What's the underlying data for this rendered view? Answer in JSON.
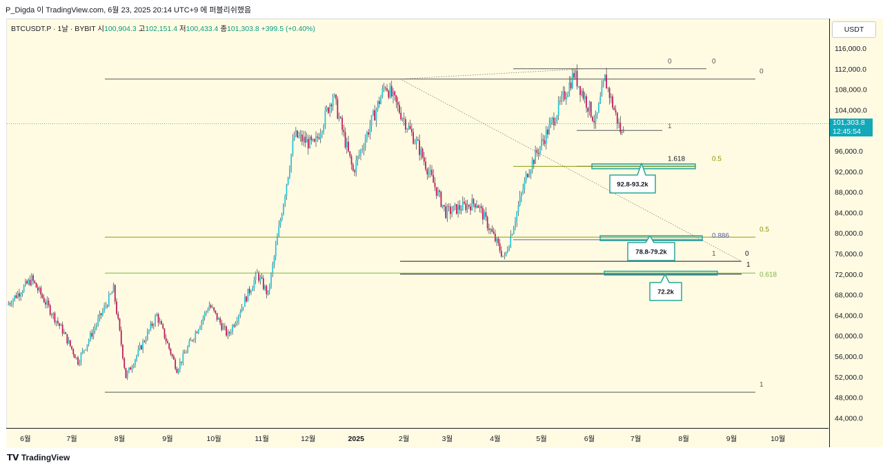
{
  "header": {
    "publish_line": "P_Digda 이 TradingView.com, 6월 23, 2025 20:14 UTC+9 에 퍼블리쉬했음"
  },
  "symbol_bar": {
    "symbol": "BTCUSDT.P · 1날 · BYBIT",
    "open_label": "시",
    "open_value": "100,904.3",
    "high_label": "고",
    "high_value": "102,151.4",
    "low_label": "저",
    "low_value": "100,433.4",
    "close_label": "종",
    "close_value": "101,303.8",
    "change": "+399.5 (+0.40%)"
  },
  "currency_button": "USDT",
  "last_price": {
    "value": "101,303.8",
    "countdown": "12:45:54"
  },
  "brand": "TradingView",
  "colors": {
    "up": "#26a69a",
    "down": "#ef5350",
    "teal_candle": "#26c6da",
    "red_candle": "#c2185b",
    "background": "#fffbe3",
    "fib_green": "#7cb342",
    "zone_green": "#26a69a"
  },
  "chart_data": {
    "type": "candlestick",
    "title": "",
    "price_range": [
      42000,
      118000
    ],
    "y_ticks": [
      "116,000.0",
      "112,000.0",
      "108,000.0",
      "104,000.0",
      "100,000.0",
      "96,000.0",
      "92,000.0",
      "88,000.0",
      "84,000.0",
      "80,000.0",
      "76,000.0",
      "72,000.0",
      "68,000.0",
      "64,000.0",
      "60,000.0",
      "56,000.0",
      "52,000.0",
      "48,000.0",
      "44,000.0"
    ],
    "x_ticks": [
      "6월",
      "7월",
      "8월",
      "9월",
      "10월",
      "11월",
      "12월",
      "2025",
      "2월",
      "3월",
      "4월",
      "5월",
      "6월",
      "7월",
      "8월",
      "9월",
      "10월"
    ],
    "price_path": [
      {
        "date": "2024-05-20",
        "close": 66000
      },
      {
        "date": "2024-06-05",
        "close": 71000
      },
      {
        "date": "2024-06-25",
        "close": 61000
      },
      {
        "date": "2024-07-05",
        "close": 55000
      },
      {
        "date": "2024-07-28",
        "close": 69000
      },
      {
        "date": "2024-08-05",
        "close": 52000
      },
      {
        "date": "2024-08-25",
        "close": 64000
      },
      {
        "date": "2024-09-07",
        "close": 53500
      },
      {
        "date": "2024-09-28",
        "close": 66000
      },
      {
        "date": "2024-10-10",
        "close": 60000
      },
      {
        "date": "2024-10-29",
        "close": 72000
      },
      {
        "date": "2024-11-05",
        "close": 68000
      },
      {
        "date": "2024-11-22",
        "close": 99000
      },
      {
        "date": "2024-12-05",
        "close": 97000
      },
      {
        "date": "2024-12-17",
        "close": 107000
      },
      {
        "date": "2024-12-30",
        "close": 92000
      },
      {
        "date": "2025-01-20",
        "close": 109000
      },
      {
        "date": "2025-02-10",
        "close": 97000
      },
      {
        "date": "2025-02-28",
        "close": 84000
      },
      {
        "date": "2025-03-20",
        "close": 86000
      },
      {
        "date": "2025-04-07",
        "close": 75000
      },
      {
        "date": "2025-04-22",
        "close": 92000
      },
      {
        "date": "2025-05-10",
        "close": 103000
      },
      {
        "date": "2025-05-22",
        "close": 111000
      },
      {
        "date": "2025-06-05",
        "close": 101500
      },
      {
        "date": "2025-06-11",
        "close": 110000
      },
      {
        "date": "2025-06-22",
        "close": 99000
      },
      {
        "date": "2025-06-23",
        "close": 101303.8
      }
    ],
    "levels": [
      {
        "price": 110000,
        "label": "0"
      },
      {
        "price": 49000,
        "label": "1"
      },
      {
        "price": 79200,
        "label": "0.5"
      },
      {
        "price": 72200,
        "label": "0.618"
      },
      {
        "price": 112000,
        "label": "0"
      },
      {
        "price": 100000,
        "label": "1"
      },
      {
        "price": 93000,
        "label": "1.618"
      },
      {
        "price": 93000,
        "label": "0.5"
      },
      {
        "price": 78700,
        "label": "0.886"
      },
      {
        "price": 74500,
        "label": "0"
      },
      {
        "price": 74500,
        "label": "1"
      }
    ],
    "zones": [
      {
        "label": "92.8-93.2k",
        "low": 92800,
        "high": 93200
      },
      {
        "label": "78.8-79.2k",
        "low": 78800,
        "high": 79200
      },
      {
        "label": "72.2k",
        "low": 72100,
        "high": 72300
      }
    ]
  }
}
